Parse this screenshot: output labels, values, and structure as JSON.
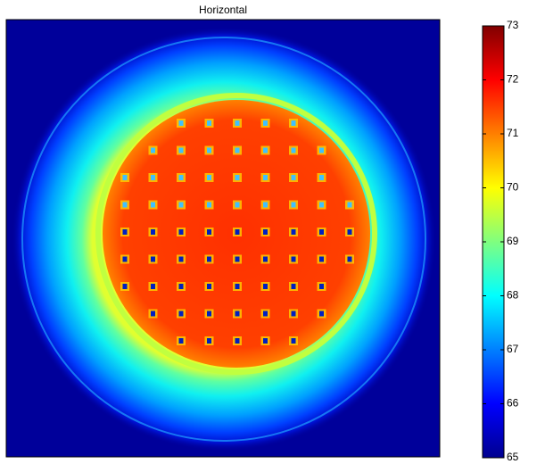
{
  "chart_data": {
    "type": "heatmap",
    "title": "Horizontal",
    "colormap": "jet",
    "colorbar": {
      "lim": [
        65,
        73
      ],
      "ticks": [
        65,
        66,
        67,
        68,
        69,
        70,
        71,
        72,
        73
      ]
    }
  }
}
